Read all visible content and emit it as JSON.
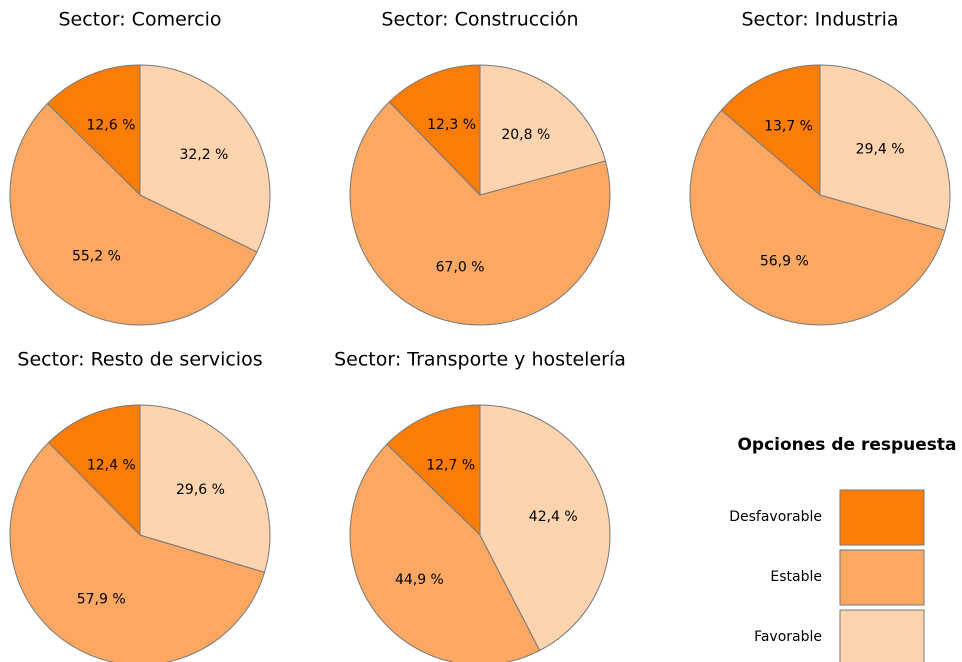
{
  "chart_data": [
    {
      "type": "pie",
      "title": "Sector: Comercio",
      "values": [
        12.6,
        55.2,
        32.2
      ],
      "value_labels": [
        "12,6 %",
        "55,2 %",
        "32,2 %"
      ]
    },
    {
      "type": "pie",
      "title": "Sector: Construcción",
      "values": [
        12.3,
        67.0,
        20.8
      ],
      "value_labels": [
        "12,3 %",
        "67,0 %",
        "20,8 %"
      ]
    },
    {
      "type": "pie",
      "title": "Sector: Industria",
      "values": [
        13.7,
        56.9,
        29.4
      ],
      "value_labels": [
        "13,7 %",
        "56,9 %",
        "29,4 %"
      ]
    },
    {
      "type": "pie",
      "title": "Sector: Resto de servicios",
      "values": [
        12.4,
        57.9,
        29.6
      ],
      "value_labels": [
        "12,4 %",
        "57,9 %",
        "29,6 %"
      ]
    },
    {
      "type": "pie",
      "title": "Sector: Transporte y hostelería",
      "values": [
        12.7,
        44.9,
        42.4
      ],
      "value_labels": [
        "12,7 %",
        "44,9 %",
        "42,4 %"
      ]
    }
  ],
  "legend": {
    "title": "Opciones de respuesta",
    "series": [
      {
        "name": "Desfavorable",
        "color": "#fb7d07"
      },
      {
        "name": "Estable",
        "color": "#fda862"
      },
      {
        "name": "Favorable",
        "color": "#fed4af"
      }
    ]
  }
}
